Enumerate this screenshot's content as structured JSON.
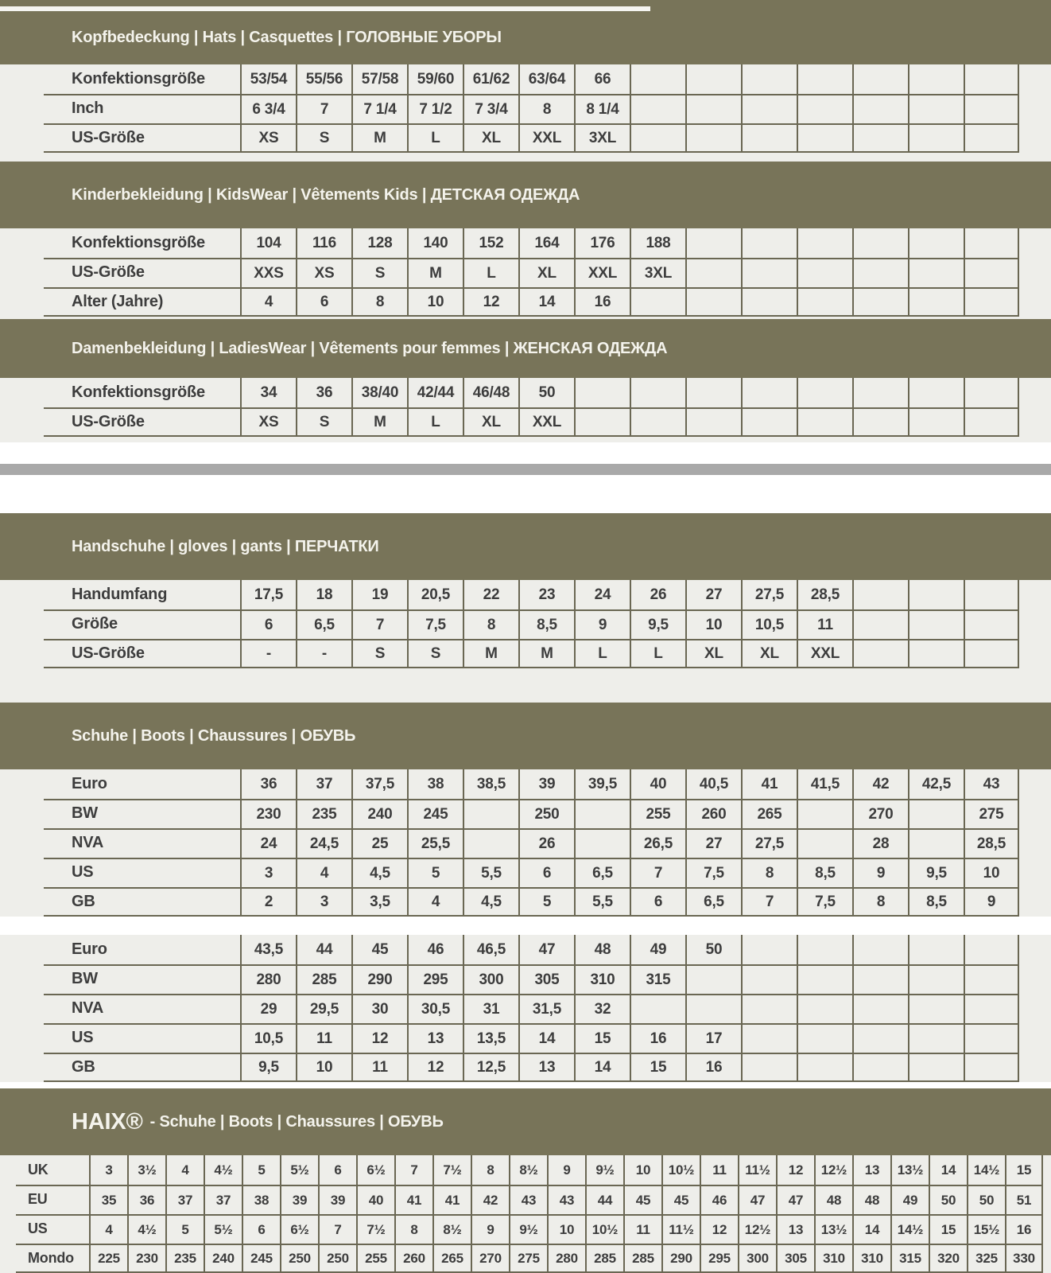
{
  "colors": {
    "olive": "#787459",
    "band_text": "#f4f3ec",
    "cell_bg": "#eeeeea",
    "line": "#6a6753",
    "text": "#3d3d3d",
    "gray_bar": "#a9a9a9",
    "gap_light": "#f5f5f1"
  },
  "sections": [
    {
      "id": "hats",
      "title": "Kopfbedeckung | Hats | Casquettes | ГОЛОВНЫЕ УБОРЫ",
      "rows": [
        {
          "label": "Konfektionsgröße",
          "values": [
            "53/54",
            "55/56",
            "57/58",
            "59/60",
            "61/62",
            "63/64",
            "66",
            "",
            "",
            "",
            "",
            "",
            "",
            ""
          ]
        },
        {
          "label": "Inch",
          "values": [
            "6 3/4",
            "7",
            "7 1/4",
            "7 1/2",
            "7 3/4",
            "8",
            "8 1/4",
            "",
            "",
            "",
            "",
            "",
            "",
            ""
          ]
        },
        {
          "label": "US-Größe",
          "values": [
            "XS",
            "S",
            "M",
            "L",
            "XL",
            "XXL",
            "3XL",
            "",
            "",
            "",
            "",
            "",
            "",
            ""
          ]
        }
      ]
    },
    {
      "id": "kids",
      "title": "Kinderbekleidung | KidsWear | Vêtements Kids | ДЕТСКАЯ ОДЕЖДА",
      "rows": [
        {
          "label": "Konfektionsgröße",
          "values": [
            "104",
            "116",
            "128",
            "140",
            "152",
            "164",
            "176",
            "188",
            "",
            "",
            "",
            "",
            "",
            ""
          ]
        },
        {
          "label": "US-Größe",
          "values": [
            "XXS",
            "XS",
            "S",
            "M",
            "L",
            "XL",
            "XXL",
            "3XL",
            "",
            "",
            "",
            "",
            "",
            ""
          ]
        },
        {
          "label": "Alter (Jahre)",
          "values": [
            "4",
            "6",
            "8",
            "10",
            "12",
            "14",
            "16",
            "",
            "",
            "",
            "",
            "",
            "",
            ""
          ]
        }
      ]
    },
    {
      "id": "ladies",
      "title": "Damenbekleidung | LadiesWear | Vêtements pour femmes | ЖЕНСКАЯ ОДЕЖДА",
      "rows": [
        {
          "label": "Konfektionsgröße",
          "values": [
            "34",
            "36",
            "38/40",
            "42/44",
            "46/48",
            "50",
            "",
            "",
            "",
            "",
            "",
            "",
            "",
            ""
          ]
        },
        {
          "label": "US-Größe",
          "values": [
            "XS",
            "S",
            "M",
            "L",
            "XL",
            "XXL",
            "",
            "",
            "",
            "",
            "",
            "",
            "",
            ""
          ]
        }
      ]
    },
    {
      "id": "gloves",
      "title": "Handschuhe | gloves | gants | ПЕРЧАТКИ",
      "rows": [
        {
          "label": "Handumfang",
          "values": [
            "17,5",
            "18",
            "19",
            "20,5",
            "22",
            "23",
            "24",
            "26",
            "27",
            "27,5",
            "28,5",
            "",
            "",
            ""
          ]
        },
        {
          "label": "Größe",
          "values": [
            "6",
            "6,5",
            "7",
            "7,5",
            "8",
            "8,5",
            "9",
            "9,5",
            "10",
            "10,5",
            "11",
            "",
            "",
            ""
          ]
        },
        {
          "label": "US-Größe",
          "values": [
            "-",
            "-",
            "S",
            "S",
            "M",
            "M",
            "L",
            "L",
            "XL",
            "XL",
            "XXL",
            "",
            "",
            ""
          ]
        }
      ]
    },
    {
      "id": "shoes",
      "title": "Schuhe | Boots | Chaussures | ОБУВЬ",
      "tables": [
        {
          "rows": [
            {
              "label": "Euro",
              "values": [
                "36",
                "37",
                "37,5",
                "38",
                "38,5",
                "39",
                "39,5",
                "40",
                "40,5",
                "41",
                "41,5",
                "42",
                "42,5",
                "43"
              ]
            },
            {
              "label": "BW",
              "values": [
                "230",
                "235",
                "240",
                "245",
                "",
                "250",
                "",
                "255",
                "260",
                "265",
                "",
                "270",
                "",
                "275"
              ]
            },
            {
              "label": "NVA",
              "values": [
                "24",
                "24,5",
                "25",
                "25,5",
                "",
                "26",
                "",
                "26,5",
                "27",
                "27,5",
                "",
                "28",
                "",
                "28,5"
              ]
            },
            {
              "label": "US",
              "values": [
                "3",
                "4",
                "4,5",
                "5",
                "5,5",
                "6",
                "6,5",
                "7",
                "7,5",
                "8",
                "8,5",
                "9",
                "9,5",
                "10"
              ]
            },
            {
              "label": "GB",
              "values": [
                "2",
                "3",
                "3,5",
                "4",
                "4,5",
                "5",
                "5,5",
                "6",
                "6,5",
                "7",
                "7,5",
                "8",
                "8,5",
                "9"
              ]
            }
          ]
        },
        {
          "rows": [
            {
              "label": "Euro",
              "values": [
                "43,5",
                "44",
                "45",
                "46",
                "46,5",
                "47",
                "48",
                "49",
                "50",
                "",
                "",
                "",
                "",
                ""
              ]
            },
            {
              "label": "BW",
              "values": [
                "280",
                "285",
                "290",
                "295",
                "300",
                "305",
                "310",
                "315",
                "",
                "",
                "",
                "",
                "",
                ""
              ]
            },
            {
              "label": "NVA",
              "values": [
                "29",
                "29,5",
                "30",
                "30,5",
                "31",
                "31,5",
                "32",
                "",
                "",
                "",
                "",
                "",
                "",
                ""
              ]
            },
            {
              "label": "US",
              "values": [
                "10,5",
                "11",
                "12",
                "13",
                "13,5",
                "14",
                "15",
                "16",
                "17",
                "",
                "",
                "",
                "",
                ""
              ]
            },
            {
              "label": "GB",
              "values": [
                "9,5",
                "10",
                "11",
                "12",
                "12,5",
                "13",
                "14",
                "15",
                "16",
                "",
                "",
                "",
                "",
                ""
              ]
            }
          ]
        }
      ]
    },
    {
      "id": "haix",
      "brand": "HAIX®",
      "title": "- Schuhe | Boots | Chaussures | ОБУВЬ",
      "rows": [
        {
          "label": "UK",
          "values": [
            "3",
            "3½",
            "4",
            "4½",
            "5",
            "5½",
            "6",
            "6½",
            "7",
            "7½",
            "8",
            "8½",
            "9",
            "9½",
            "10",
            "10½",
            "11",
            "11½",
            "12",
            "12½",
            "13",
            "13½",
            "14",
            "14½",
            "15"
          ]
        },
        {
          "label": "EU",
          "values": [
            "35",
            "36",
            "37",
            "37",
            "38",
            "39",
            "39",
            "40",
            "41",
            "41",
            "42",
            "43",
            "43",
            "44",
            "45",
            "45",
            "46",
            "47",
            "47",
            "48",
            "48",
            "49",
            "50",
            "50",
            "51"
          ]
        },
        {
          "label": "US",
          "values": [
            "4",
            "4½",
            "5",
            "5½",
            "6",
            "6½",
            "7",
            "7½",
            "8",
            "8½",
            "9",
            "9½",
            "10",
            "10½",
            "11",
            "11½",
            "12",
            "12½",
            "13",
            "13½",
            "14",
            "14½",
            "15",
            "15½",
            "16"
          ]
        },
        {
          "label": "Mondo",
          "values": [
            "225",
            "230",
            "235",
            "240",
            "245",
            "250",
            "250",
            "255",
            "260",
            "265",
            "270",
            "275",
            "280",
            "285",
            "285",
            "290",
            "295",
            "300",
            "305",
            "310",
            "310",
            "315",
            "320",
            "325",
            "330"
          ]
        }
      ]
    }
  ]
}
